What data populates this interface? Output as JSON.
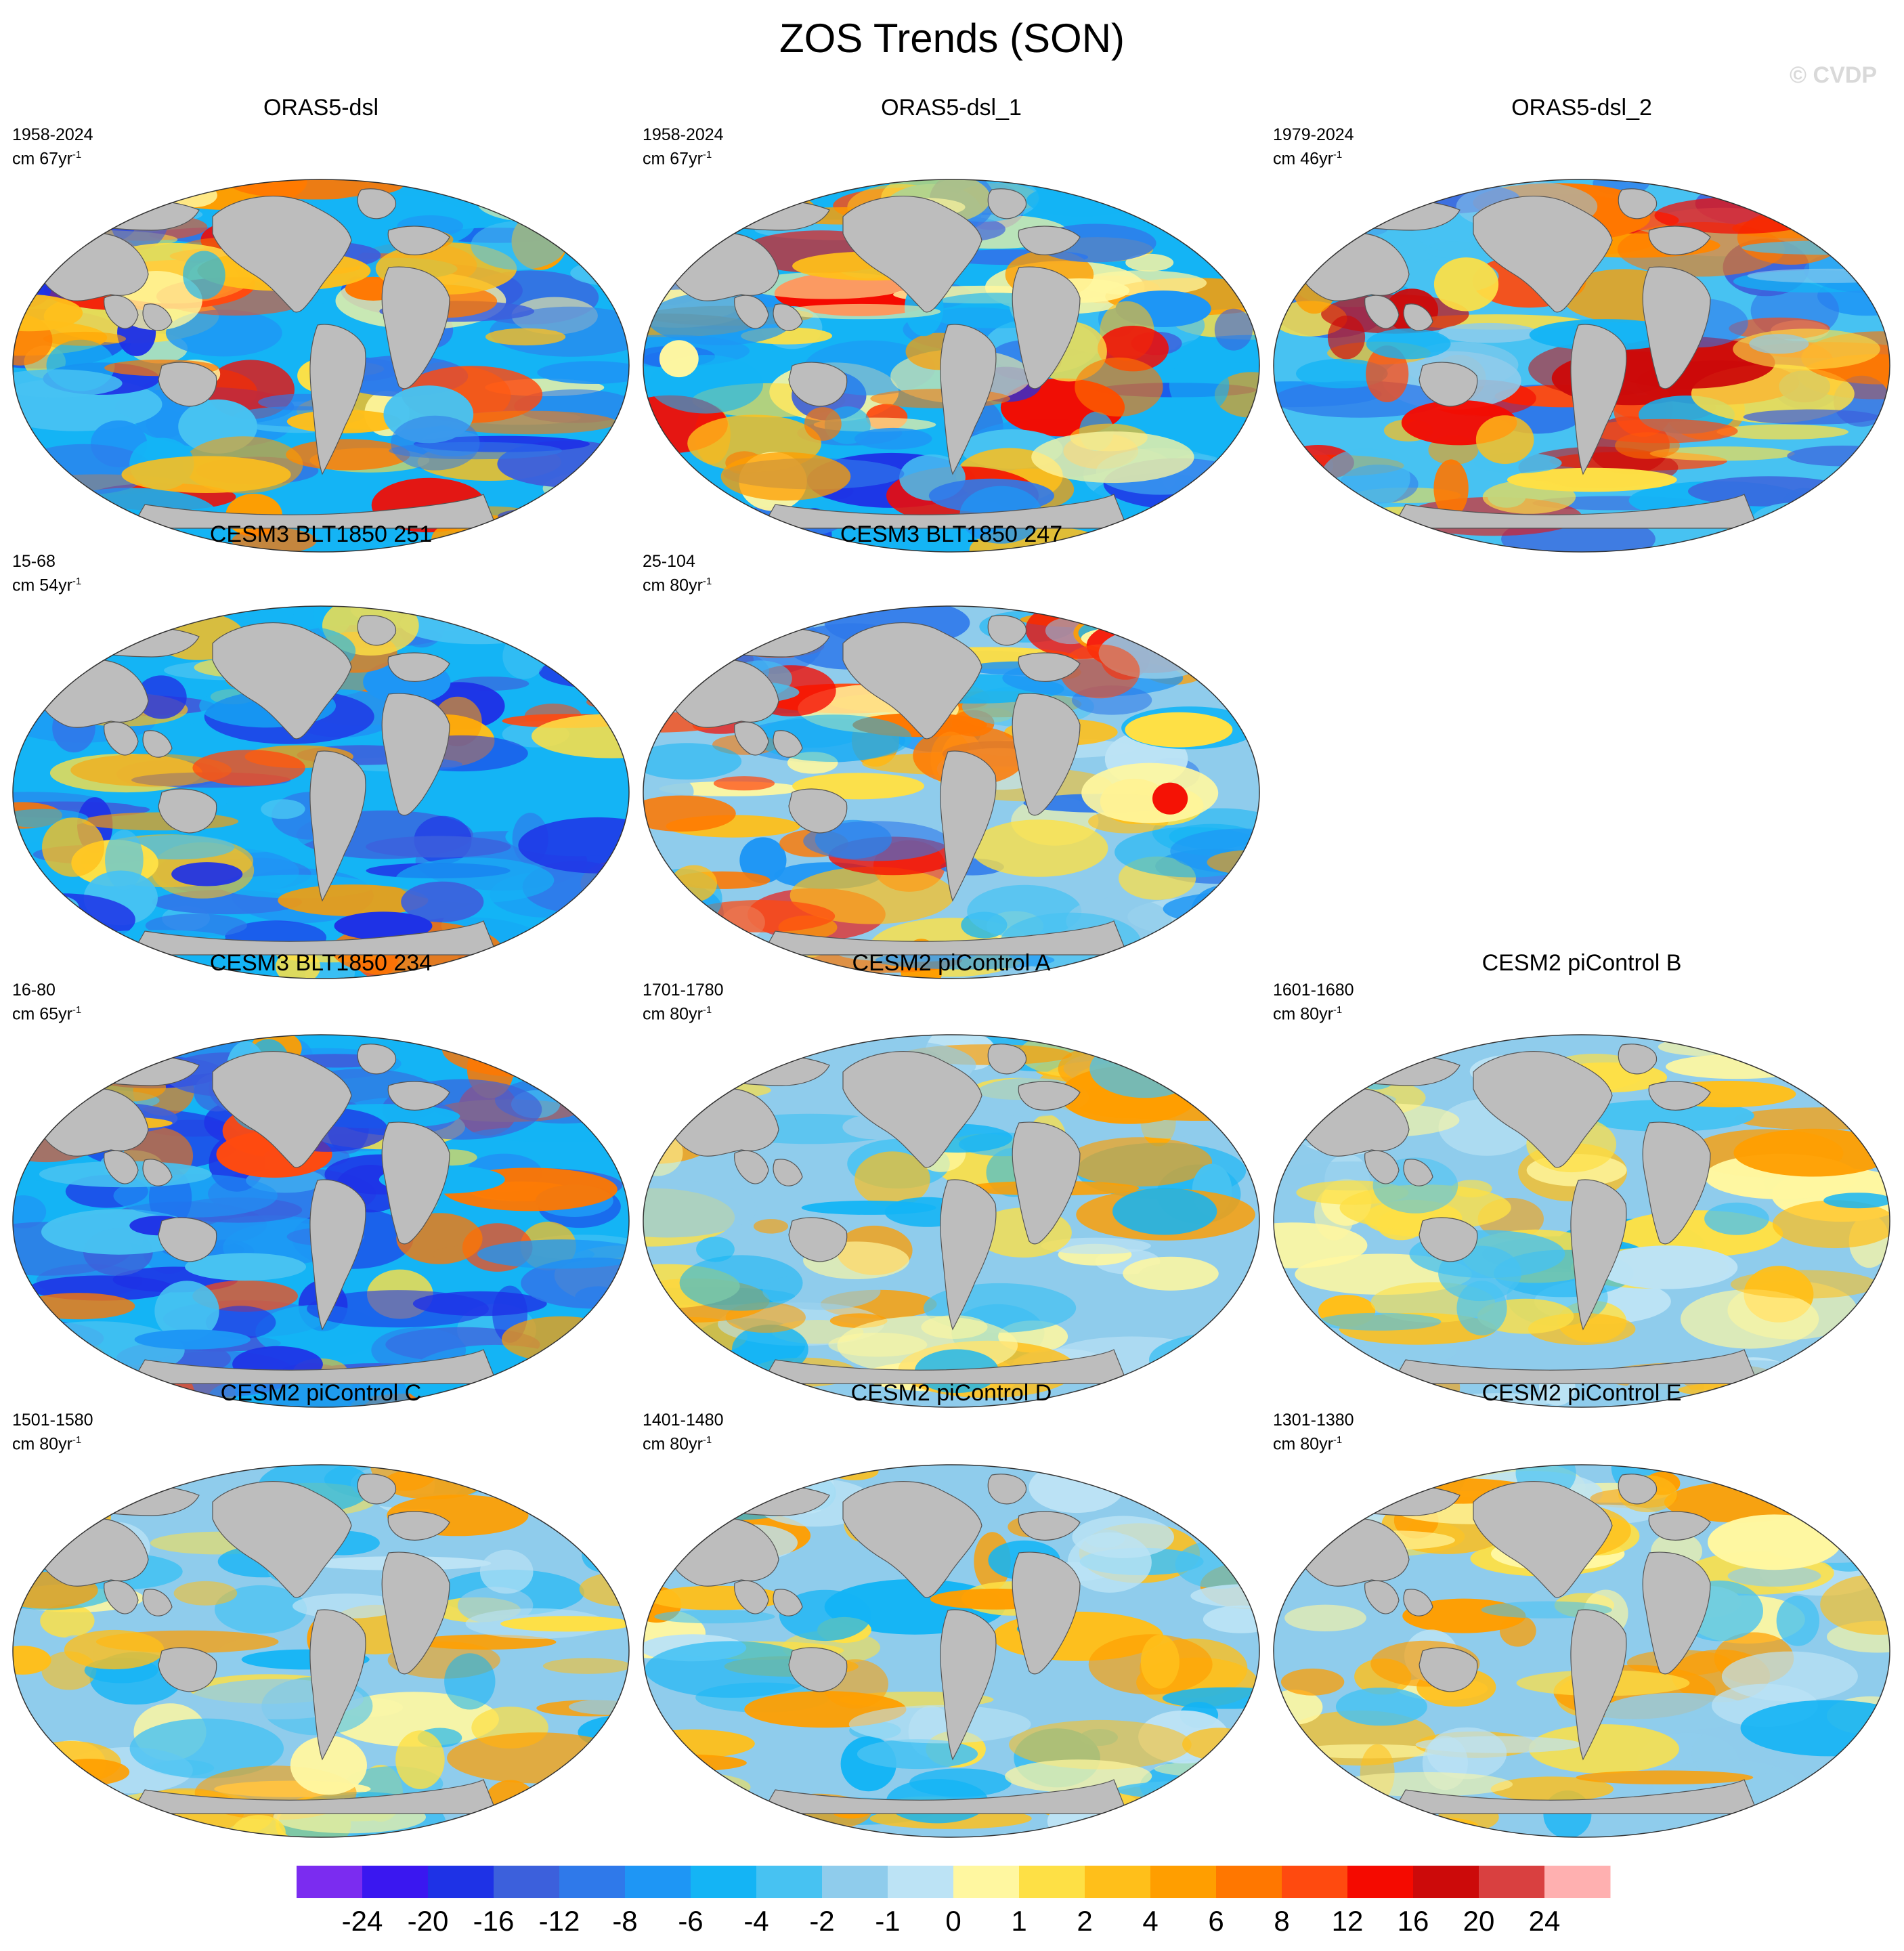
{
  "title": "ZOS Trends (SON)",
  "credit": "© CVDP",
  "units_note": "cm per period yr^-1",
  "panels": [
    {
      "name": "ORAS5-dsl",
      "period": "1958-2024",
      "units": "cm 67yr",
      "exp": "-1",
      "style": "strong"
    },
    {
      "name": "ORAS5-dsl_1",
      "period": "1958-2024",
      "units": "cm 67yr",
      "exp": "-1",
      "style": "strong"
    },
    {
      "name": "ORAS5-dsl_2",
      "period": "1979-2024",
      "units": "cm 46yr",
      "exp": "-1",
      "style": "strong2"
    },
    {
      "name": "CESM3 BLT1850 251",
      "period": "15-68",
      "units": "cm 54yr",
      "exp": "-1",
      "style": "blue"
    },
    {
      "name": "CESM3 BLT1850 247",
      "period": "25-104",
      "units": "cm 80yr",
      "exp": "-1",
      "style": "mixed"
    },
    {
      "name": "CESM3 BLT1850 234",
      "period": "16-80",
      "units": "cm 65yr",
      "exp": "-1",
      "style": "blue"
    },
    {
      "name": "CESM2 piControl A",
      "period": "1701-1780",
      "units": "cm 80yr",
      "exp": "-1",
      "style": "weak"
    },
    {
      "name": "CESM2 piControl B",
      "period": "1601-1680",
      "units": "cm 80yr",
      "exp": "-1",
      "style": "weak"
    },
    {
      "name": "CESM2 piControl C",
      "period": "1501-1580",
      "units": "cm 80yr",
      "exp": "-1",
      "style": "weak"
    },
    {
      "name": "CESM2 piControl D",
      "period": "1401-1480",
      "units": "cm 80yr",
      "exp": "-1",
      "style": "weak"
    },
    {
      "name": "CESM2 piControl E",
      "period": "1301-1380",
      "units": "cm 80yr",
      "exp": "-1",
      "style": "weak"
    }
  ],
  "colorbar": {
    "labels": [
      "-24",
      "-20",
      "-16",
      "-12",
      "-8",
      "-6",
      "-4",
      "-2",
      "-1",
      "0",
      "1",
      "2",
      "4",
      "6",
      "8",
      "12",
      "16",
      "20",
      "24"
    ],
    "colors": [
      "#7b2cf0",
      "#3a17f0",
      "#1e32e6",
      "#3c60dc",
      "#2f79ea",
      "#1e96f5",
      "#14b4f5",
      "#47c2f2",
      "#8fccec",
      "#bce3f5",
      "#fff7a0",
      "#fee045",
      "#ffbf1a",
      "#ff9e00",
      "#ff7700",
      "#ff4a0f",
      "#f50a00",
      "#cc0a0a",
      "#d94040",
      "#ffb0b0"
    ]
  },
  "land_color": "#bdbdbd",
  "ocean_outline": "#333333"
}
